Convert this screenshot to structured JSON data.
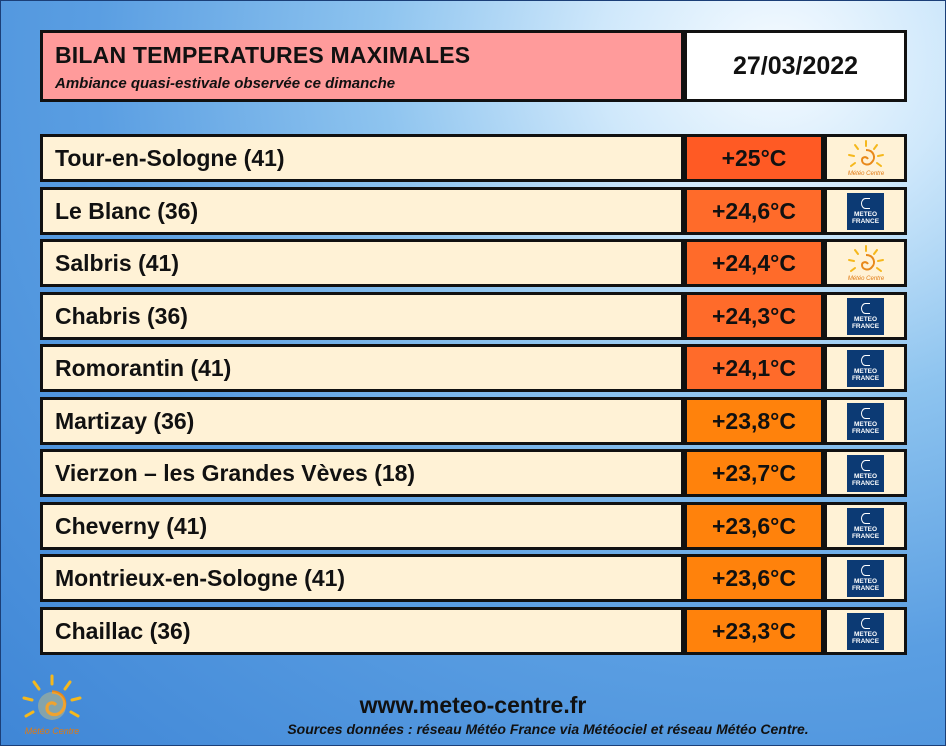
{
  "header": {
    "title": "BILAN TEMPERATURES MAXIMALES",
    "subtitle": "Ambiance quasi-estivale observée ce dimanche",
    "date": "27/03/2022"
  },
  "rows": [
    {
      "station": "Tour-en-Sologne (41)",
      "temp": "+25°C",
      "color": "#ff5a24",
      "source": "sun-logo"
    },
    {
      "station": "Le Blanc (36)",
      "temp": "+24,6°C",
      "color": "#ff6b2a",
      "source": "meteo-france-logo"
    },
    {
      "station": "Salbris (41)",
      "temp": "+24,4°C",
      "color": "#ff6b2a",
      "source": "sun-logo"
    },
    {
      "station": "Chabris (36)",
      "temp": "+24,3°C",
      "color": "#ff6b2a",
      "source": "meteo-france-logo"
    },
    {
      "station": "Romorantin (41)",
      "temp": "+24,1°C",
      "color": "#ff6b2a",
      "source": "meteo-france-logo"
    },
    {
      "station": "Martizay (36)",
      "temp": "+23,8°C",
      "color": "#ff820c",
      "source": "meteo-france-logo"
    },
    {
      "station": "Vierzon – les Grandes Vèves (18)",
      "temp": "+23,7°C",
      "color": "#ff820c",
      "source": "meteo-france-logo"
    },
    {
      "station": "Cheverny (41)",
      "temp": "+23,6°C",
      "color": "#ff820c",
      "source": "meteo-france-logo"
    },
    {
      "station": "Montrieux-en-Sologne (41)",
      "temp": "+23,6°C",
      "color": "#ff820c",
      "source": "meteo-france-logo"
    },
    {
      "station": "Chaillac (36)",
      "temp": "+23,3°C",
      "color": "#ff820c",
      "source": "meteo-france-logo"
    }
  ],
  "logos": {
    "meteo_france_line1": "METEO",
    "meteo_france_line2": "FRANCE",
    "meteo_centre": "Météo Centre"
  },
  "footer": {
    "url": "www.meteo-centre.fr",
    "sources": "Sources données : réseau Météo France via Météociel et réseau Météo Centre."
  }
}
